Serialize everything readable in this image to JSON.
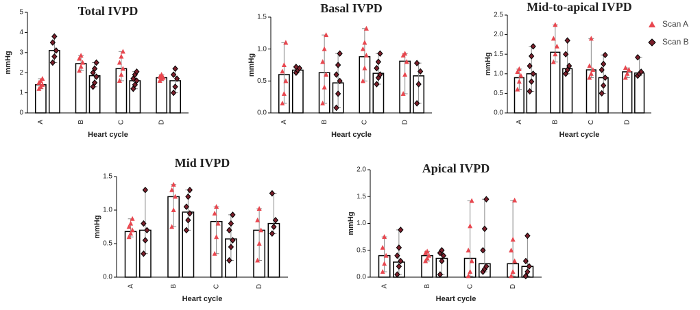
{
  "chart_data": [
    {
      "type": "bar",
      "title": "Total IVPD",
      "xlabel": "Heart cycle",
      "ylabel": "mmHg",
      "categories": [
        "A",
        "B",
        "C",
        "D"
      ],
      "ylim": [
        0,
        5
      ],
      "yticks": [
        0,
        1,
        2,
        3,
        4,
        5
      ],
      "series": [
        {
          "name": "Scan A",
          "color": "#e8474f",
          "values": [
            1.4,
            2.45,
            2.2,
            1.75
          ],
          "points": [
            [
              1.2,
              1.3,
              1.4,
              1.5,
              1.6,
              1.7
            ],
            [
              2.1,
              2.3,
              2.5,
              2.7,
              2.85
            ],
            [
              1.6,
              1.9,
              2.2,
              2.5,
              2.8,
              3.05
            ],
            [
              1.6,
              1.7,
              1.75,
              1.8,
              1.9
            ]
          ]
        },
        {
          "name": "Scan B",
          "color": "#7a1f2b",
          "values": [
            3.1,
            1.85,
            1.6,
            1.6
          ],
          "points": [
            [
              2.5,
              2.8,
              3.1,
              3.5,
              3.8
            ],
            [
              1.3,
              1.5,
              1.8,
              2.0,
              2.2,
              2.5
            ],
            [
              1.2,
              1.4,
              1.6,
              1.7,
              1.9,
              2.05
            ],
            [
              1.0,
              1.3,
              1.7,
              1.9,
              2.2
            ]
          ]
        }
      ]
    },
    {
      "type": "bar",
      "title": "Basal IVPD",
      "xlabel": "Heart cycle",
      "ylabel": "mmHg",
      "categories": [
        "A",
        "B",
        "C",
        "D"
      ],
      "ylim": [
        0,
        1.5
      ],
      "yticks": [
        {
          "value": 0,
          "label": "0.0"
        },
        {
          "value": 0.5,
          "label": "0.5"
        },
        {
          "value": 1,
          "label": "1.0"
        },
        {
          "value": 1.5,
          "label": "1.5"
        }
      ],
      "series": [
        {
          "name": "Scan A",
          "color": "#e8474f",
          "values": [
            0.6,
            0.63,
            0.88,
            0.81
          ],
          "points": [
            [
              0.15,
              0.3,
              0.5,
              0.65,
              0.75,
              1.1
            ],
            [
              0.15,
              0.4,
              0.6,
              0.8,
              1.0,
              1.22
            ],
            [
              0.5,
              0.7,
              0.9,
              1.0,
              1.1,
              1.32
            ],
            [
              0.3,
              0.6,
              0.8,
              0.9,
              0.93
            ]
          ]
        },
        {
          "name": "Scan B",
          "color": "#7a1f2b",
          "values": [
            0.67,
            0.47,
            0.62,
            0.58
          ],
          "points": [
            [
              0.63,
              0.67,
              0.7,
              0.72
            ],
            [
              0.08,
              0.3,
              0.5,
              0.6,
              0.75,
              0.93
            ],
            [
              0.45,
              0.55,
              0.6,
              0.7,
              0.8,
              0.93
            ],
            [
              0.15,
              0.45,
              0.65,
              0.78
            ]
          ]
        }
      ]
    },
    {
      "type": "bar",
      "title": "Mid-to-apical IVPD",
      "xlabel": "Heart cycle",
      "ylabel": "mmHg",
      "categories": [
        "A",
        "B",
        "C",
        "D"
      ],
      "ylim": [
        0,
        2.5
      ],
      "yticks": [
        {
          "value": 0,
          "label": "0.0"
        },
        {
          "value": 0.5,
          "label": "0.5"
        },
        {
          "value": 1,
          "label": "1.0"
        },
        {
          "value": 1.5,
          "label": "1.5"
        },
        {
          "value": 2,
          "label": "2.0"
        },
        {
          "value": 2.5,
          "label": "2.5"
        }
      ],
      "series": [
        {
          "name": "Scan A",
          "color": "#e8474f",
          "values": [
            0.9,
            1.55,
            1.1,
            1.05
          ],
          "points": [
            [
              0.6,
              0.8,
              0.95,
              1.05,
              1.12
            ],
            [
              1.3,
              1.5,
              1.7,
              1.9,
              2.25
            ],
            [
              0.9,
              1.0,
              1.1,
              1.2,
              1.9
            ],
            [
              0.9,
              1.0,
              1.1,
              1.15
            ]
          ]
        },
        {
          "name": "Scan B",
          "color": "#7a1f2b",
          "values": [
            1.0,
            1.13,
            0.9,
            1.02
          ],
          "points": [
            [
              0.55,
              0.8,
              1.0,
              1.2,
              1.45,
              1.7
            ],
            [
              1.0,
              1.1,
              1.2,
              1.5,
              1.85
            ],
            [
              0.5,
              0.7,
              0.9,
              1.1,
              1.25,
              1.48
            ],
            [
              0.95,
              1.0,
              1.05,
              1.42
            ]
          ]
        }
      ]
    },
    {
      "type": "bar",
      "title": "Mid IVPD",
      "xlabel": "Heart cycle",
      "ylabel": "mmHg",
      "categories": [
        "A",
        "B",
        "C",
        "D"
      ],
      "ylim": [
        0,
        1.5
      ],
      "yticks": [
        {
          "value": 0,
          "label": "0.0"
        },
        {
          "value": 0.5,
          "label": "0.5"
        },
        {
          "value": 1,
          "label": "1.0"
        },
        {
          "value": 1.5,
          "label": "1.5"
        }
      ],
      "series": [
        {
          "name": "Scan A",
          "color": "#e8474f",
          "values": [
            0.68,
            1.2,
            0.83,
            0.7
          ],
          "points": [
            [
              0.6,
              0.65,
              0.7,
              0.75,
              0.8,
              0.87
            ],
            [
              0.75,
              1.0,
              1.2,
              1.3,
              1.38
            ],
            [
              0.35,
              0.6,
              0.8,
              0.95,
              1.05
            ],
            [
              0.25,
              0.5,
              0.7,
              0.85,
              1.02
            ]
          ]
        },
        {
          "name": "Scan B",
          "color": "#7a1f2b",
          "values": [
            0.7,
            0.97,
            0.57,
            0.8
          ],
          "points": [
            [
              0.35,
              0.55,
              0.7,
              0.8,
              1.3
            ],
            [
              0.7,
              0.85,
              0.95,
              1.05,
              1.2,
              1.3
            ],
            [
              0.25,
              0.45,
              0.55,
              0.7,
              0.8,
              0.93
            ],
            [
              0.65,
              0.75,
              0.85,
              1.25
            ]
          ]
        }
      ]
    },
    {
      "type": "bar",
      "title": "Apical IVPD",
      "xlabel": "Heart cycle",
      "ylabel": "mmHg",
      "categories": [
        "A",
        "B",
        "C",
        "D"
      ],
      "ylim": [
        0,
        2
      ],
      "yticks": [
        {
          "value": 0,
          "label": "0.0"
        },
        {
          "value": 0.5,
          "label": "0.5"
        },
        {
          "value": 1,
          "label": "1.0"
        },
        {
          "value": 1.5,
          "label": "1.5"
        },
        {
          "value": 2,
          "label": "2.0"
        }
      ],
      "series": [
        {
          "name": "Scan A",
          "color": "#e8474f",
          "values": [
            0.4,
            0.4,
            0.35,
            0.25
          ],
          "points": [
            [
              0.1,
              0.25,
              0.4,
              0.55,
              0.75
            ],
            [
              0.3,
              0.35,
              0.4,
              0.45,
              0.48
            ],
            [
              0.02,
              0.1,
              0.3,
              0.5,
              0.95,
              1.42
            ],
            [
              0.02,
              0.1,
              0.3,
              0.5,
              0.7,
              1.43
            ]
          ]
        },
        {
          "name": "Scan B",
          "color": "#7a1f2b",
          "values": [
            0.28,
            0.35,
            0.25,
            0.2
          ],
          "points": [
            [
              0.05,
              0.2,
              0.3,
              0.4,
              0.55,
              0.88
            ],
            [
              0.05,
              0.3,
              0.4,
              0.45,
              0.5
            ],
            [
              0.1,
              0.15,
              0.2,
              0.5,
              0.9,
              1.45
            ],
            [
              0.02,
              0.1,
              0.2,
              0.3,
              0.77
            ]
          ]
        }
      ]
    }
  ]
}
